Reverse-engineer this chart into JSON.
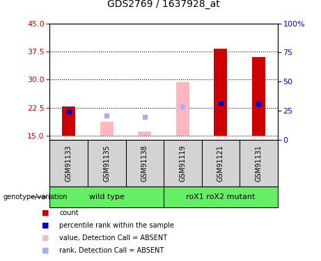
{
  "title": "GDS2769 / 1637928_at",
  "samples": [
    "GSM91133",
    "GSM91135",
    "GSM91138",
    "GSM91119",
    "GSM91121",
    "GSM91131"
  ],
  "ylim_left": [
    14,
    45
  ],
  "ylim_right": [
    0,
    100
  ],
  "yticks_left": [
    15,
    22.5,
    30,
    37.5,
    45
  ],
  "yticks_right": [
    0,
    25,
    50,
    75,
    100
  ],
  "ytick_labels_right": [
    "0",
    "25",
    "50",
    "75",
    "100%"
  ],
  "bar_base": 15,
  "red_bars": {
    "GSM91133": 22.8,
    "GSM91135": null,
    "GSM91138": null,
    "GSM91119": null,
    "GSM91121": 38.2,
    "GSM91131": 36.0
  },
  "pink_bars": {
    "GSM91133": null,
    "GSM91135": 18.8,
    "GSM91138": 16.2,
    "GSM91119": 29.3,
    "GSM91121": null,
    "GSM91131": null
  },
  "blue_squares": {
    "GSM91133": 21.5,
    "GSM91135": null,
    "GSM91138": null,
    "GSM91119": null,
    "GSM91121": 23.8,
    "GSM91131": 23.5
  },
  "lightblue_squares": {
    "GSM91133": null,
    "GSM91135": 20.5,
    "GSM91138": 20.0,
    "GSM91119": 22.8,
    "GSM91121": null,
    "GSM91131": null
  },
  "red_color": "#cc0000",
  "pink_color": "#ffb6c1",
  "blue_color": "#0000cc",
  "lightblue_color": "#aaaaff",
  "bg_sample_labels": "#d3d3d3",
  "green_color": "#66ee66",
  "axis_color_left": "#cc0000",
  "axis_color_right": "#0000bb",
  "legend_items": [
    {
      "label": "count",
      "color": "#cc0000"
    },
    {
      "label": "percentile rank within the sample",
      "color": "#0000cc"
    },
    {
      "label": "value, Detection Call = ABSENT",
      "color": "#ffb6c1"
    },
    {
      "label": "rank, Detection Call = ABSENT",
      "color": "#aaaaff"
    }
  ],
  "wt_label": "wild type",
  "mut_label": "roX1 roX2 mutant",
  "genotype_label": "genotype/variation"
}
